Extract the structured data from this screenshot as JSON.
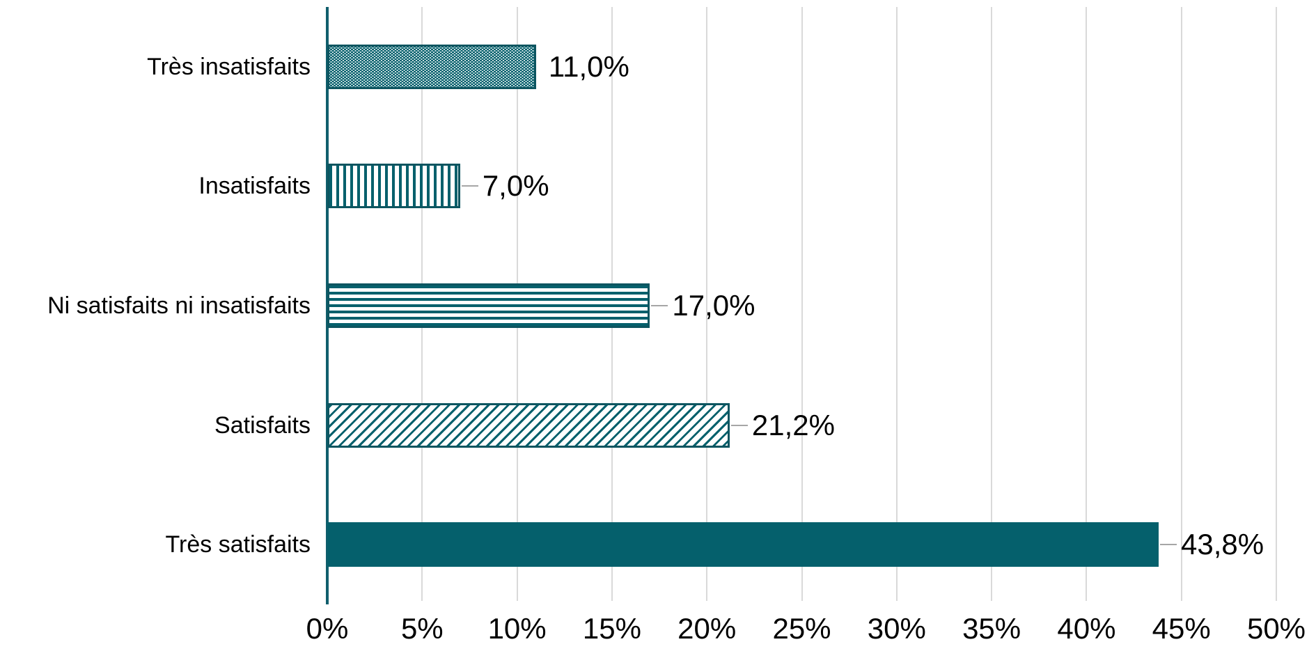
{
  "chart_data": {
    "type": "bar",
    "orientation": "horizontal",
    "title": "",
    "xlabel": "",
    "ylabel": "",
    "categories": [
      "Très insatisfaits",
      "Insatisfaits",
      "Ni satisfaits ni insatisfaits",
      "Satisfaits",
      "Très satisfaits"
    ],
    "values": [
      11.0,
      7.0,
      17.0,
      21.2,
      43.8
    ],
    "value_labels": [
      "11,0%",
      "7,0%",
      "17,0%",
      "21,2%",
      "43,8%"
    ],
    "bar_patterns": [
      "dots",
      "vertical",
      "horizontal",
      "diagonal",
      "solid"
    ],
    "has_leader_line": [
      false,
      true,
      true,
      true,
      true
    ],
    "xlim": [
      0,
      50
    ],
    "x_tick_step": 5,
    "x_tick_labels": [
      "0%",
      "5%",
      "10%",
      "15%",
      "20%",
      "25%",
      "30%",
      "35%",
      "40%",
      "45%",
      "50%"
    ],
    "grid": "vertical-gridlines-on",
    "legend": "none",
    "colors": {
      "bar_fill": "#05606c",
      "bar_border": "#0d5560",
      "axis_line": "#115f6d",
      "gridline": "#d9d9d9",
      "leader_line": "#a6a6a6",
      "text": "#000000",
      "background": "#ffffff"
    }
  }
}
